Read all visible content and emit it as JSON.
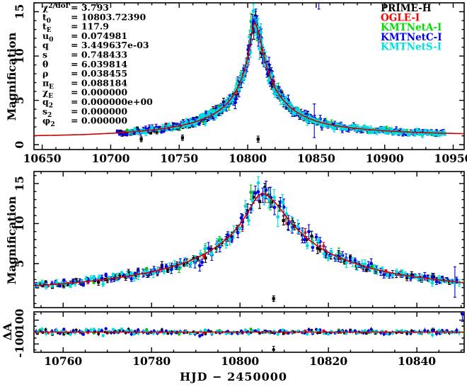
{
  "chart_data": {
    "type": "scatter+line",
    "title": "",
    "x_axis_title": "HJD − 2450000",
    "panels": {
      "top": {
        "ylabel": "Magnification",
        "xlim": [
          10644,
          10958
        ],
        "ylim": [
          -0.55,
          16.0
        ],
        "xticks": [
          10650,
          10700,
          10750,
          10800,
          10850,
          10900,
          10950
        ],
        "x_minor_step": 10,
        "yticks": [
          0,
          5,
          10,
          15
        ],
        "y_minor_step": 1,
        "show_x_labels": true
      },
      "middle": {
        "ylabel": "Magnification",
        "xlim": [
          10753.4,
          10850.7
        ],
        "ylim": [
          -0.5,
          16.5
        ],
        "xticks": [
          10760,
          10780,
          10800,
          10820,
          10840
        ],
        "x_minor_step": 5,
        "yticks": [
          5,
          10,
          15
        ],
        "y_minor_step": 1,
        "show_x_labels": false
      },
      "residual": {
        "ylabel": "ΔA",
        "xlim": [
          10753.4,
          10850.7
        ],
        "ylim": [
          -170,
          170
        ],
        "xticks": [
          10760,
          10780,
          10800,
          10820,
          10840
        ],
        "x_minor_step": 5,
        "yticks": [
          -100,
          100
        ],
        "y_minor_step": 50,
        "show_x_labels": true
      }
    },
    "fit_params": [
      {
        "sym": "χ",
        "sup": "2",
        "post": "/dof",
        "value": "3.793"
      },
      {
        "sym": "t",
        "sub": "0",
        "value": "10803.72390"
      },
      {
        "sym": "t",
        "sub": "E",
        "value": "117.9"
      },
      {
        "sym": "u",
        "sub": "0",
        "value": "0.074981"
      },
      {
        "sym": "q",
        "value": "3.449637e-03"
      },
      {
        "sym": "s",
        "value": "0.748433"
      },
      {
        "sym": "θ",
        "value": "6.039814"
      },
      {
        "sym": "ρ",
        "value": "0.038455"
      },
      {
        "sym": "π",
        "sub": "E",
        "value": "0.088184"
      },
      {
        "sym": "χ",
        "sub": "E",
        "value": "0.000000"
      },
      {
        "sym": "q",
        "sub": "2",
        "value": "0.000000e+00"
      },
      {
        "sym": "s",
        "sub": "2",
        "value": "0.000000"
      },
      {
        "sym": "φ",
        "sub": "2",
        "value": "0.000000"
      }
    ],
    "legend": [
      {
        "label": "PRIME-H",
        "color": "#000000"
      },
      {
        "label": "OGLE-I",
        "color": "#ff0000"
      },
      {
        "label": "KMTNetA-I",
        "color": "#00dd00"
      },
      {
        "label": "KMTNetC-I",
        "color": "#0000ee"
      },
      {
        "label": "KMTNetS-I",
        "color": "#00e0e0"
      }
    ],
    "model": {
      "color": "#cc0000",
      "curve_t": [
        10644,
        10660,
        10680,
        10700,
        10710,
        10720,
        10730,
        10740,
        10750,
        10758,
        10764,
        10770,
        10775,
        10780,
        10784,
        10788,
        10792,
        10795,
        10798,
        10800,
        10801,
        10802,
        10803,
        10804,
        10805,
        10806,
        10808,
        10810,
        10812,
        10815,
        10818,
        10821,
        10825,
        10830,
        10835,
        10840,
        10845,
        10850,
        10856,
        10862,
        10870,
        10880,
        10890,
        10900,
        10910,
        10920,
        10930,
        10940,
        10950,
        10958
      ],
      "curve_A": [
        1.02,
        1.06,
        1.14,
        1.28,
        1.38,
        1.5,
        1.65,
        1.85,
        2.12,
        2.4,
        2.68,
        3.05,
        3.45,
        3.95,
        4.5,
        5.2,
        6.2,
        7.2,
        8.6,
        9.9,
        10.7,
        11.6,
        12.6,
        13.4,
        13.8,
        13.6,
        12.6,
        11.2,
        9.8,
        8.2,
        7.0,
        6.1,
        5.2,
        4.35,
        3.75,
        3.3,
        2.95,
        2.65,
        2.4,
        2.2,
        2.0,
        1.82,
        1.68,
        1.57,
        1.48,
        1.41,
        1.35,
        1.3,
        1.27,
        1.25
      ]
    },
    "datasets": [
      {
        "name": "PRIME-H",
        "color": "#000000",
        "marker": "square",
        "size": 4.2,
        "segments": [
          [
            10707,
            10752,
            2.0
          ],
          [
            10753,
            10849,
            1.15
          ]
        ],
        "rel_noise": 0.045,
        "abs_noise": 0.06,
        "err_rel": 0.05,
        "err_abs": 0.12
      },
      {
        "name": "OGLE-I",
        "color": "#ee0000",
        "marker": "square",
        "size": 3.6,
        "segments": [
          [
            10709,
            10849,
            4.6
          ]
        ],
        "rel_noise": 0.03,
        "abs_noise": 0.04,
        "err_rel": 0.04,
        "err_abs": 0.1
      },
      {
        "name": "KMTNetA-I",
        "color": "#00c400",
        "marker": "circle",
        "size": 4.8,
        "segments": [
          [
            10713,
            10848,
            6.0
          ],
          [
            10851,
            10941,
            4.6
          ]
        ],
        "rel_noise": 0.05,
        "abs_noise": 0.06,
        "err_rel": 0.05,
        "err_abs": 0.12
      },
      {
        "name": "KMTNetC-I",
        "color": "#0000dd",
        "marker": "circle",
        "size": 4.8,
        "segments": [
          [
            10705,
            10752,
            1.7
          ],
          [
            10753,
            10850,
            0.95
          ],
          [
            10851,
            10944,
            1.5
          ]
        ],
        "rel_noise": 0.055,
        "abs_noise": 0.08,
        "err_rel": 0.06,
        "err_abs": 0.14
      },
      {
        "name": "KMTNetS-I",
        "color": "#00dcdc",
        "marker": "circle",
        "size": 4.8,
        "segments": [
          [
            10714,
            10752,
            2.3
          ],
          [
            10753,
            10850,
            1.05
          ],
          [
            10851,
            10944,
            1.25
          ]
        ],
        "rel_noise": 0.05,
        "abs_noise": 0.07,
        "err_rel": 0.06,
        "err_abs": 0.13
      }
    ],
    "outliers": [
      {
        "dataset": "PRIME-H",
        "t": 10722.3,
        "A": 0.62,
        "err": 0.28
      },
      {
        "dataset": "PRIME-H",
        "t": 10752.4,
        "A": 0.78,
        "err": 0.3
      },
      {
        "dataset": "PRIME-H",
        "t": 10807.6,
        "A": 0.62,
        "err": 0.35
      },
      {
        "dataset": "KMTNetC-I",
        "t": 10848.6,
        "A": 2.7,
        "err": 1.9
      },
      {
        "dataset": "KMTNetC-I",
        "t": 10851.9,
        "A": 16.9,
        "err": 1.6
      }
    ],
    "residual_outliers": [
      {
        "dataset": "PRIME-H",
        "t": 10807.6,
        "res": -148,
        "err": 28
      },
      {
        "dataset": "KMTNetC-I",
        "t": 10850.3,
        "res": 150,
        "err": 60
      }
    ]
  }
}
